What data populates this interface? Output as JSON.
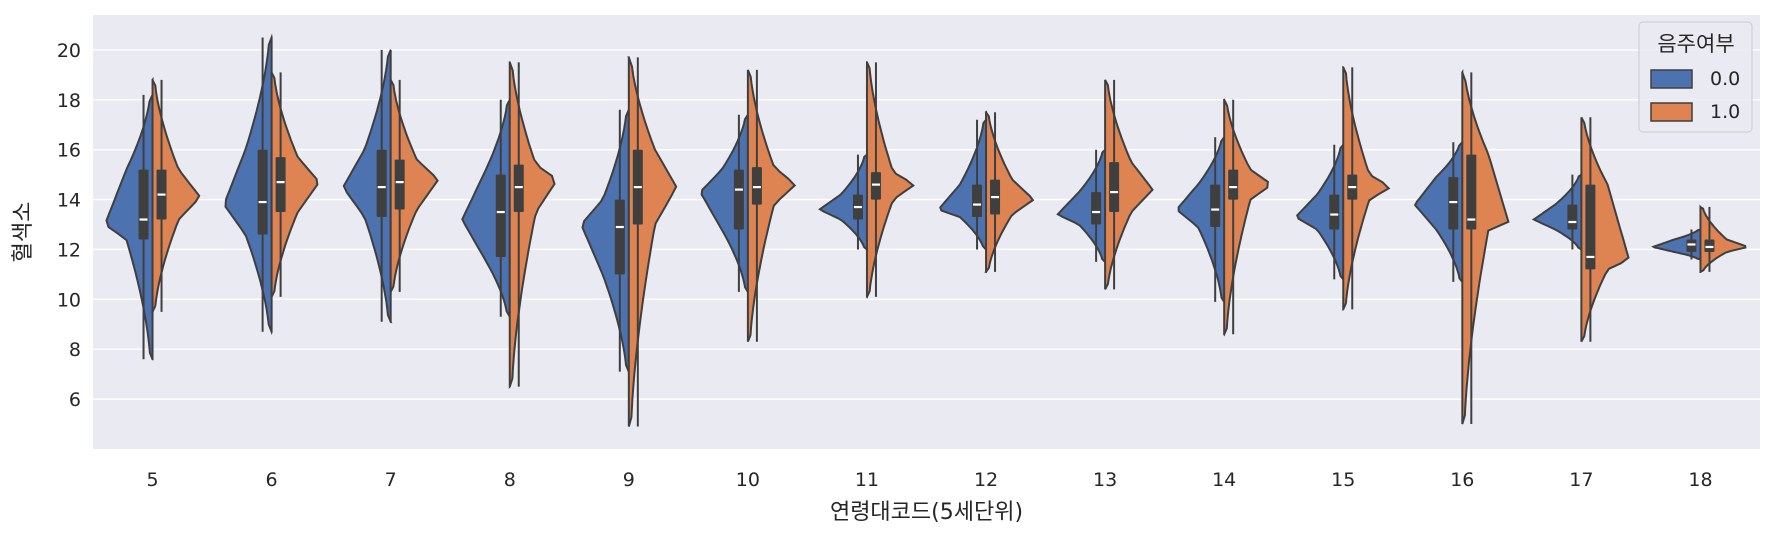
{
  "chart_data": {
    "type": "violin",
    "split": true,
    "xlabel": "연령대코드(5세단위)",
    "ylabel": "혈색소",
    "ylim": [
      4.0,
      21.4
    ],
    "yticks": [
      6,
      8,
      10,
      12,
      14,
      16,
      18,
      20
    ],
    "grid": true,
    "legend": {
      "title": "음주여부",
      "placement": "top-right"
    },
    "categories": [
      "5",
      "6",
      "7",
      "8",
      "9",
      "10",
      "11",
      "12",
      "13",
      "14",
      "15",
      "16",
      "17",
      "18"
    ],
    "series": [
      {
        "name": "0.0",
        "color": "#4c72b0",
        "side": "left",
        "stats": [
          {
            "min": 7.6,
            "q1": 12.4,
            "median": 13.2,
            "q3": 15.2,
            "max": 18.2,
            "peak": 13.0
          },
          {
            "min": 8.7,
            "q1": 12.6,
            "median": 13.9,
            "q3": 16.0,
            "max": 20.5,
            "peak": 13.8
          },
          {
            "min": 9.1,
            "q1": 13.3,
            "median": 14.5,
            "q3": 16.0,
            "max": 20.0,
            "peak": 14.5
          },
          {
            "min": 9.3,
            "q1": 11.7,
            "median": 13.5,
            "q3": 15.0,
            "max": 18.0,
            "peak": 13.2
          },
          {
            "min": 7.1,
            "q1": 11.0,
            "median": 12.9,
            "q3": 14.0,
            "max": 17.6,
            "peak": 13.0
          },
          {
            "min": 10.3,
            "q1": 12.8,
            "median": 14.4,
            "q3": 15.2,
            "max": 17.4,
            "peak": 14.3
          },
          {
            "min": 12.0,
            "q1": 13.2,
            "median": 13.7,
            "q3": 14.2,
            "max": 15.8,
            "peak": 13.6
          },
          {
            "min": 12.0,
            "q1": 13.3,
            "median": 13.8,
            "q3": 14.6,
            "max": 17.2,
            "peak": 13.6
          },
          {
            "min": 11.5,
            "q1": 13.0,
            "median": 13.5,
            "q3": 14.3,
            "max": 16.0,
            "peak": 13.4
          },
          {
            "min": 9.9,
            "q1": 12.9,
            "median": 13.6,
            "q3": 14.6,
            "max": 16.5,
            "peak": 13.6
          },
          {
            "min": 10.8,
            "q1": 12.8,
            "median": 13.4,
            "q3": 14.2,
            "max": 16.2,
            "peak": 13.3
          },
          {
            "min": 10.7,
            "q1": 12.8,
            "median": 13.9,
            "q3": 14.9,
            "max": 16.3,
            "peak": 13.8
          },
          {
            "min": 12.0,
            "q1": 12.8,
            "median": 13.1,
            "q3": 13.8,
            "max": 15.0,
            "peak": 13.2
          },
          {
            "min": 11.6,
            "q1": 11.9,
            "median": 12.2,
            "q3": 12.4,
            "max": 12.8,
            "peak": 12.1
          }
        ]
      },
      {
        "name": "1.0",
        "color": "#dd8452",
        "side": "right",
        "stats": [
          {
            "min": 9.5,
            "q1": 13.2,
            "median": 14.2,
            "q3": 15.2,
            "max": 18.8,
            "peak": 14.1
          },
          {
            "min": 10.1,
            "q1": 13.5,
            "median": 14.7,
            "q3": 15.7,
            "max": 19.1,
            "peak": 14.7
          },
          {
            "min": 10.3,
            "q1": 13.6,
            "median": 14.7,
            "q3": 15.6,
            "max": 18.8,
            "peak": 14.8
          },
          {
            "min": 6.5,
            "q1": 13.5,
            "median": 14.5,
            "q3": 15.4,
            "max": 19.5,
            "peak": 14.8
          },
          {
            "min": 4.9,
            "q1": 13.0,
            "median": 14.5,
            "q3": 16.0,
            "max": 19.7,
            "peak": 14.5
          },
          {
            "min": 8.3,
            "q1": 13.8,
            "median": 14.5,
            "q3": 15.3,
            "max": 19.2,
            "peak": 14.6
          },
          {
            "min": 10.1,
            "q1": 14.0,
            "median": 14.6,
            "q3": 15.1,
            "max": 19.5,
            "peak": 14.6
          },
          {
            "min": 11.1,
            "q1": 13.4,
            "median": 14.1,
            "q3": 14.8,
            "max": 17.5,
            "peak": 14.0
          },
          {
            "min": 10.4,
            "q1": 13.5,
            "median": 14.3,
            "q3": 15.5,
            "max": 18.8,
            "peak": 14.4
          },
          {
            "min": 8.6,
            "q1": 14.0,
            "median": 14.5,
            "q3": 15.2,
            "max": 18.0,
            "peak": 14.6
          },
          {
            "min": 9.6,
            "q1": 14.0,
            "median": 14.5,
            "q3": 15.0,
            "max": 19.3,
            "peak": 14.5
          },
          {
            "min": 5.0,
            "q1": 12.8,
            "median": 13.2,
            "q3": 15.8,
            "max": 19.1,
            "peak": 12.9
          },
          {
            "min": 8.3,
            "q1": 11.2,
            "median": 11.7,
            "q3": 14.6,
            "max": 17.3,
            "peak": 11.6
          },
          {
            "min": 11.1,
            "q1": 11.9,
            "median": 12.1,
            "q3": 12.4,
            "max": 13.7,
            "peak": 12.1
          }
        ]
      }
    ]
  }
}
